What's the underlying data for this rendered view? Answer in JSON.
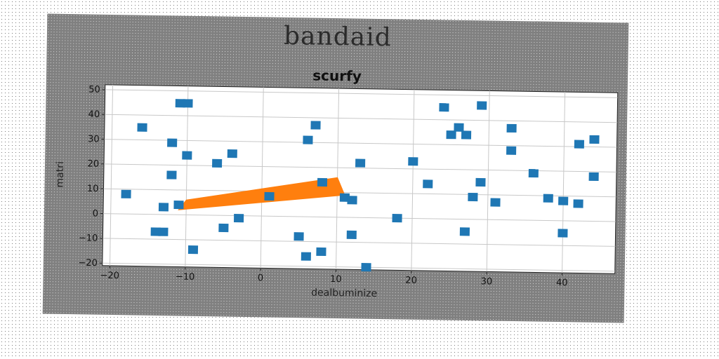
{
  "figure": {
    "suptitle": "bandaid"
  },
  "chart_data": {
    "type": "scatter",
    "title": "scurfy",
    "xlabel": "dealbuminize",
    "ylabel": "matri",
    "xlim": [
      -21,
      47
    ],
    "ylim": [
      -21,
      52
    ],
    "xticks": [
      -20,
      -10,
      0,
      10,
      20,
      30,
      40
    ],
    "yticks": [
      -20,
      -10,
      0,
      10,
      20,
      30,
      40,
      50
    ],
    "grid": true,
    "colors": {
      "points": "#1f77b4",
      "band": "#ff7f0e"
    },
    "series": [
      {
        "marker": "square",
        "x": [
          -18,
          -16,
          -12,
          -11,
          -10,
          -10,
          -12,
          -13,
          -11,
          -14,
          -13,
          -9,
          -4,
          -6,
          -5,
          -3,
          1,
          5,
          6,
          8,
          6,
          7,
          8,
          11,
          12,
          13,
          12,
          14,
          18,
          20,
          22,
          24,
          25,
          26,
          27,
          28,
          29,
          29,
          27,
          31,
          33,
          33,
          36,
          38,
          40,
          40,
          42,
          44,
          44,
          42
        ],
        "y": [
          8,
          35,
          29,
          45,
          45,
          24,
          16,
          3,
          4,
          -7,
          -7,
          -14,
          25,
          21,
          -5,
          -1,
          8,
          -8,
          -16,
          -14,
          31,
          37,
          14,
          8,
          7,
          22,
          -7,
          -20,
          0,
          23,
          14,
          45,
          34,
          37,
          -5,
          9,
          15,
          46,
          34,
          7,
          37,
          28,
          19,
          9,
          8,
          -5,
          31,
          33,
          18,
          7
        ]
      }
    ],
    "band": {
      "polygon": [
        [
          -11,
          2
        ],
        [
          11,
          9
        ],
        [
          10,
          16
        ],
        [
          -10,
          6
        ]
      ]
    }
  }
}
